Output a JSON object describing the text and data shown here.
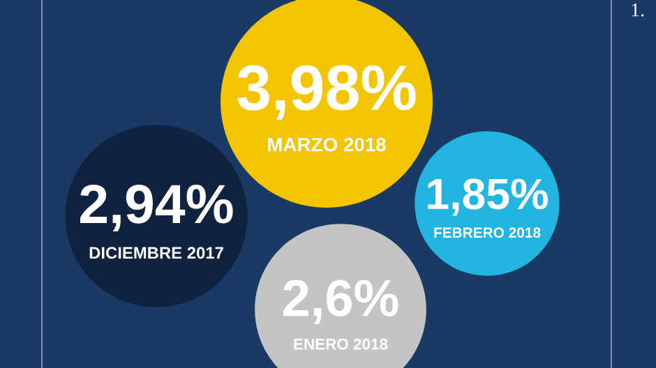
{
  "chart_data": {
    "type": "other",
    "categories": [
      "MARZO 2018",
      "DICIEMBRE 2017",
      "FEBRERO 2018",
      "ENERO 2018"
    ],
    "values": [
      3.98,
      2.94,
      1.85,
      2.6
    ],
    "value_labels": [
      "3,98%",
      "2,94%",
      "1,85%",
      "2,6%"
    ],
    "colors": [
      "#f2c500",
      "#0f2340",
      "#22b5e2",
      "#c4c4c4"
    ],
    "annotations": [
      "1."
    ]
  }
}
